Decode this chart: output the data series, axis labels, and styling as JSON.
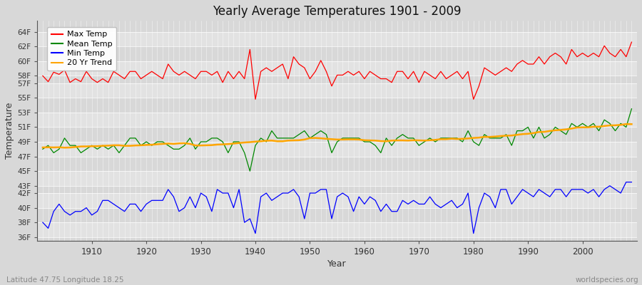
{
  "title": "Yearly Average Temperatures 1901 - 2009",
  "xlabel": "Year",
  "ylabel": "Temperature",
  "footer_left": "Latitude 47.75 Longitude 18.25",
  "footer_right": "worldspecies.org",
  "legend": [
    "Max Temp",
    "Mean Temp",
    "Min Temp",
    "20 Yr Trend"
  ],
  "legend_colors": [
    "#ff0000",
    "#008800",
    "#0000ff",
    "#ffa500"
  ],
  "start_year": 1901,
  "end_year": 2009,
  "ytick_labels": [
    "36F",
    "38F",
    "40F",
    "42F",
    "43F",
    "45F",
    "47F",
    "49F",
    "51F",
    "53F",
    "55F",
    "57F",
    "58F",
    "60F",
    "62F",
    "64F"
  ],
  "ytick_vals": [
    36,
    38,
    40,
    42,
    43,
    45,
    47,
    49,
    51,
    53,
    55,
    57,
    58,
    60,
    62,
    64
  ],
  "ylim": [
    35.5,
    65.5
  ],
  "xlim": [
    1900,
    2010
  ],
  "bg_color": "#d8d8d8",
  "plot_bg_light": "#e0e0e0",
  "plot_bg_dark": "#d0d0d0",
  "grid_color": "#ffffff",
  "line_color_max": "#ff0000",
  "line_color_mean": "#008800",
  "line_color_min": "#0000ff",
  "line_color_trend": "#ffa500",
  "figsize": [
    9.0,
    4.0
  ],
  "dpi": 100,
  "max_temps": [
    58.0,
    57.2,
    58.5,
    58.2,
    58.8,
    57.1,
    57.6,
    57.2,
    58.6,
    57.6,
    57.1,
    57.6,
    57.1,
    58.6,
    58.1,
    57.6,
    58.6,
    58.6,
    57.6,
    58.1,
    58.6,
    58.1,
    57.6,
    59.6,
    58.6,
    58.1,
    58.6,
    58.1,
    57.6,
    58.6,
    58.6,
    58.1,
    58.6,
    57.1,
    58.6,
    57.6,
    58.6,
    57.6,
    61.6,
    54.8,
    58.6,
    59.1,
    58.6,
    59.1,
    59.6,
    57.6,
    60.6,
    59.6,
    59.1,
    57.6,
    58.6,
    60.1,
    58.6,
    56.6,
    58.1,
    58.1,
    58.6,
    58.1,
    58.6,
    57.6,
    58.6,
    58.1,
    57.6,
    57.6,
    57.1,
    58.6,
    58.6,
    57.6,
    58.6,
    57.1,
    58.6,
    58.1,
    57.6,
    58.6,
    57.6,
    58.1,
    58.6,
    57.6,
    58.6,
    54.8,
    56.6,
    59.1,
    58.6,
    58.1,
    58.6,
    59.1,
    58.6,
    59.6,
    60.1,
    59.6,
    59.6,
    60.6,
    59.6,
    60.6,
    61.1,
    60.6,
    59.6,
    61.6,
    60.6,
    61.1,
    60.6,
    61.1,
    60.6,
    62.1,
    61.1,
    60.6,
    61.6,
    60.6,
    62.6
  ],
  "mean_temps": [
    48.0,
    48.5,
    47.5,
    48.0,
    49.5,
    48.5,
    48.5,
    47.5,
    48.0,
    48.5,
    48.0,
    48.5,
    48.0,
    48.5,
    47.5,
    48.5,
    49.5,
    49.5,
    48.5,
    49.0,
    48.5,
    49.0,
    49.0,
    48.5,
    48.0,
    48.0,
    48.5,
    49.5,
    48.0,
    49.0,
    49.0,
    49.5,
    49.5,
    49.0,
    47.5,
    49.0,
    49.0,
    47.5,
    45.0,
    48.5,
    49.5,
    49.0,
    50.5,
    49.5,
    49.5,
    49.5,
    49.5,
    50.0,
    50.5,
    49.5,
    50.0,
    50.5,
    50.0,
    47.5,
    49.0,
    49.5,
    49.5,
    49.5,
    49.5,
    49.0,
    49.0,
    48.5,
    47.5,
    49.5,
    48.5,
    49.5,
    50.0,
    49.5,
    49.5,
    48.5,
    49.0,
    49.5,
    49.0,
    49.5,
    49.5,
    49.5,
    49.5,
    49.0,
    50.5,
    49.0,
    48.5,
    50.0,
    49.5,
    49.5,
    49.5,
    50.0,
    48.5,
    50.5,
    50.5,
    51.0,
    49.5,
    51.0,
    49.5,
    50.0,
    51.0,
    50.5,
    50.0,
    51.5,
    51.0,
    51.5,
    51.0,
    51.5,
    50.5,
    52.0,
    51.5,
    50.5,
    51.5,
    51.0,
    53.5
  ],
  "min_temps": [
    38.0,
    37.2,
    39.5,
    40.5,
    39.5,
    39.0,
    39.5,
    39.5,
    40.0,
    39.0,
    39.5,
    41.0,
    41.0,
    40.5,
    40.0,
    39.5,
    40.5,
    40.5,
    39.5,
    40.5,
    41.0,
    41.0,
    41.0,
    42.5,
    41.5,
    39.5,
    40.0,
    41.5,
    40.0,
    42.0,
    41.5,
    39.5,
    42.5,
    42.0,
    42.0,
    40.0,
    42.5,
    38.0,
    38.5,
    36.5,
    41.5,
    42.0,
    41.0,
    41.5,
    42.0,
    42.0,
    42.5,
    41.5,
    38.5,
    42.0,
    42.0,
    42.5,
    42.5,
    38.5,
    41.5,
    42.0,
    41.5,
    39.5,
    41.5,
    40.5,
    41.5,
    41.0,
    39.5,
    40.5,
    39.5,
    39.5,
    41.0,
    40.5,
    41.0,
    40.5,
    40.5,
    41.5,
    40.5,
    40.0,
    40.5,
    41.0,
    40.0,
    40.5,
    42.0,
    36.5,
    40.0,
    42.0,
    41.5,
    40.0,
    42.5,
    42.5,
    40.5,
    41.5,
    42.5,
    42.0,
    41.5,
    42.5,
    42.0,
    41.5,
    42.5,
    42.5,
    41.5,
    42.5,
    42.5,
    42.5,
    42.0,
    42.5,
    41.5,
    42.5,
    43.0,
    42.5,
    42.0,
    43.5,
    43.5
  ]
}
